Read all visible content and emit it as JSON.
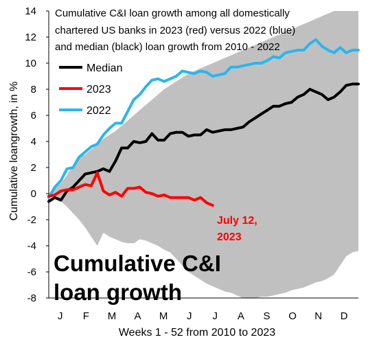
{
  "chart_data": {
    "type": "line",
    "title_lines": [
      "Cumulative C&I loan growth among all domestically",
      "chartered US banks in 2023  (red) versus 2022 (blue)",
      "and median (black) loan growth from 2010  - 2022"
    ],
    "xlabel": "Weeks 1 - 52 from 2010  to 2023",
    "ylabel": "Cumulative loangrowth, in %",
    "xlim": [
      1,
      52
    ],
    "ylim": [
      -8,
      14
    ],
    "yticks": [
      -8,
      -6,
      -4,
      -2,
      0,
      2,
      4,
      6,
      8,
      10,
      12,
      14
    ],
    "month_labels": [
      "J",
      "F",
      "M",
      "A",
      "M",
      "J",
      "J",
      "A",
      "S",
      "O",
      "N",
      "D"
    ],
    "grid": false,
    "legend_position": "upper-left",
    "legend": [
      {
        "label": "Median",
        "color": "#000000"
      },
      {
        "label": "2023",
        "color": "#ff0000"
      },
      {
        "label": "2022",
        "color": "#29b6ef"
      }
    ],
    "annotation_lines": [
      "July 12,",
      "2023"
    ],
    "big_label_lines": [
      "Cumulative C&I",
      "loan growth"
    ],
    "range_band": {
      "name": "range 2010-2022",
      "color": "#c0c0c0",
      "x": [
        1,
        2,
        3,
        4,
        5,
        6,
        7,
        8,
        9,
        10,
        11,
        12,
        13,
        14,
        15,
        16,
        17,
        18,
        19,
        20,
        21,
        22,
        23,
        24,
        25,
        26,
        27,
        28,
        29,
        30,
        31,
        32,
        33,
        34,
        35,
        36,
        37,
        38,
        39,
        40,
        41,
        42,
        43,
        44,
        45,
        46,
        47,
        48,
        49,
        50,
        51,
        52
      ],
      "upper": [
        0.0,
        0.4,
        0.8,
        1.4,
        2.2,
        2.8,
        3.0,
        3.4,
        3.8,
        4.2,
        4.5,
        4.8,
        5.2,
        5.6,
        6.0,
        6.4,
        6.8,
        7.2,
        7.6,
        8.0,
        8.3,
        8.6,
        8.9,
        9.2,
        9.4,
        9.6,
        9.8,
        10.0,
        10.2,
        10.4,
        10.6,
        10.8,
        11.0,
        11.2,
        11.4,
        11.6,
        11.8,
        12.0,
        12.2,
        12.4,
        12.6,
        12.8,
        13.0,
        13.2,
        13.4,
        13.6,
        13.8,
        14.0,
        14.0,
        14.0,
        14.0,
        14.0
      ],
      "lower": [
        0.0,
        -0.3,
        -0.6,
        -1.0,
        -1.5,
        -2.0,
        -2.6,
        -3.3,
        -4.0,
        -3.0,
        -3.3,
        -3.5,
        -3.7,
        -3.8,
        -3.8,
        -3.5,
        -3.6,
        -3.8,
        -4.0,
        -4.3,
        -4.5,
        -5.0,
        -5.5,
        -6.0,
        -6.3,
        -6.6,
        -6.9,
        -7.1,
        -7.3,
        -7.5,
        -7.6,
        -7.8,
        -8.0,
        -8.0,
        -8.0,
        -7.9,
        -7.9,
        -7.8,
        -7.7,
        -7.6,
        -7.4,
        -7.3,
        -7.2,
        -7.0,
        -6.8,
        -6.7,
        -6.5,
        -6.2,
        -5.5,
        -4.8,
        -4.5,
        -4.4
      ]
    },
    "series": [
      {
        "name": "2022",
        "color": "#29b6ef",
        "x": [
          1,
          2,
          3,
          4,
          5,
          6,
          7,
          8,
          9,
          10,
          11,
          12,
          13,
          14,
          15,
          16,
          17,
          18,
          19,
          20,
          21,
          22,
          23,
          24,
          25,
          26,
          27,
          28,
          29,
          30,
          31,
          32,
          33,
          34,
          35,
          36,
          37,
          38,
          39,
          40,
          41,
          42,
          43,
          44,
          45,
          46,
          47,
          48,
          49,
          50,
          51,
          52
        ],
        "values": [
          -0.3,
          0.5,
          1.0,
          1.9,
          2.0,
          2.8,
          3.2,
          3.6,
          3.8,
          4.5,
          5.0,
          5.4,
          5.4,
          6.3,
          7.2,
          7.6,
          8.2,
          8.7,
          8.8,
          8.6,
          8.8,
          9.0,
          9.4,
          9.3,
          9.2,
          9.4,
          9.3,
          9.0,
          9.1,
          9.2,
          9.7,
          9.7,
          9.8,
          9.9,
          10.0,
          10.0,
          10.2,
          10.5,
          10.4,
          10.8,
          10.9,
          11.0,
          11.0,
          11.5,
          11.8,
          11.3,
          11.0,
          10.8,
          11.2,
          10.8,
          11.0,
          11.0
        ]
      },
      {
        "name": "Median",
        "color": "#000000",
        "x": [
          1,
          2,
          3,
          4,
          5,
          6,
          7,
          8,
          9,
          10,
          11,
          12,
          13,
          14,
          15,
          16,
          17,
          18,
          19,
          20,
          21,
          22,
          23,
          24,
          25,
          26,
          27,
          28,
          29,
          30,
          31,
          32,
          33,
          34,
          35,
          36,
          37,
          38,
          39,
          40,
          41,
          42,
          43,
          44,
          45,
          46,
          47,
          48,
          49,
          50,
          51,
          52
        ],
        "values": [
          -0.6,
          -0.3,
          -0.5,
          0.2,
          0.5,
          1.0,
          1.5,
          1.6,
          1.7,
          1.9,
          1.7,
          2.5,
          3.5,
          3.5,
          4.0,
          3.9,
          4.0,
          4.6,
          4.1,
          4.1,
          4.6,
          4.7,
          4.7,
          4.4,
          4.5,
          4.5,
          4.9,
          4.7,
          4.8,
          4.9,
          4.9,
          5.0,
          5.1,
          5.5,
          5.8,
          6.1,
          6.4,
          6.7,
          6.7,
          6.9,
          7.0,
          7.4,
          7.6,
          8.0,
          7.8,
          7.6,
          7.2,
          7.4,
          7.8,
          8.3,
          8.4,
          8.4
        ]
      },
      {
        "name": "2023",
        "color": "#ff0000",
        "x": [
          1,
          2,
          3,
          4,
          5,
          6,
          7,
          8,
          9,
          10,
          11,
          12,
          13,
          14,
          15,
          16,
          17,
          18,
          19,
          20,
          21,
          22,
          23,
          24,
          25,
          26,
          27,
          28
        ],
        "values": [
          -0.2,
          -0.1,
          0.2,
          0.3,
          0.3,
          0.5,
          0.7,
          0.6,
          1.6,
          0.2,
          -0.1,
          0.1,
          -0.2,
          0.4,
          0.4,
          0.5,
          0.1,
          0.0,
          -0.2,
          -0.1,
          -0.3,
          -0.3,
          -0.3,
          -0.3,
          -0.5,
          -0.3,
          -0.7,
          -0.9
        ]
      }
    ]
  }
}
